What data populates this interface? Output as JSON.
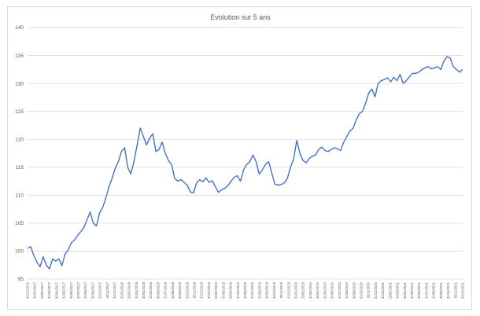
{
  "chart_data": {
    "type": "line",
    "title": "Evolution sur 5 ans",
    "xlabel": "",
    "ylabel": "",
    "ylim": [
      95,
      140
    ],
    "yticks": [
      95,
      100,
      105,
      110,
      115,
      120,
      125,
      130,
      135,
      140
    ],
    "grid": true,
    "legend": "none",
    "colors": {
      "series": "#4472c4",
      "grid": "#d9d9d9",
      "text": "#595959"
    },
    "x_tick_labels": [
      "31/12/2016",
      "31/01/2017",
      "28/02/2017",
      "31/03/2017",
      "30/04/2017",
      "31/05/2017",
      "30/06/2017",
      "31/07/2017",
      "31/08/2017",
      "30/09/2017",
      "31/10/2017",
      "30/11/2017",
      "31/12/2017",
      "31/01/2018",
      "28/02/2018",
      "31/03/2018",
      "30/04/2018",
      "31/05/2018",
      "30/06/2018",
      "31/07/2018",
      "31/08/2018",
      "30/09/2018",
      "31/10/2018",
      "30/11/2018",
      "31/12/2018",
      "31/01/2019",
      "28/02/2019",
      "31/03/2019",
      "30/04/2019",
      "31/05/2019",
      "30/06/2019",
      "31/07/2019",
      "31/08/2019",
      "30/09/2019",
      "31/10/2019",
      "30/11/2019",
      "31/12/2019",
      "31/01/2020",
      "29/02/2020",
      "31/03/2020",
      "30/04/2020",
      "31/05/2020",
      "30/06/2020",
      "31/07/2020",
      "31/08/2020",
      "30/09/2020",
      "31/10/2020",
      "30/11/2020",
      "31/12/2020",
      "31/01/2021",
      "28/02/2021",
      "31/03/2021",
      "30/04/2021",
      "31/05/2021",
      "30/06/2021",
      "31/07/2021",
      "31/08/2021",
      "30/09/2021",
      "31/10/2021",
      "30/11/2021",
      "31/12/2021"
    ],
    "series": [
      {
        "values": [
          100.5,
          100.8,
          99.2,
          98.0,
          97.2,
          99.0,
          97.5,
          96.8,
          98.6,
          98.2,
          98.6,
          97.4,
          99.5,
          100.2,
          101.5,
          102.0,
          102.8,
          103.5,
          104.2,
          105.6,
          107.0,
          105.0,
          104.5,
          106.8,
          107.8,
          109.5,
          111.5,
          113.0,
          114.8,
          116.0,
          117.8,
          118.5,
          115.0,
          113.8,
          116.0,
          119.0,
          122.0,
          120.5,
          119.0,
          120.2,
          121.0,
          117.8,
          118.2,
          119.5,
          117.5,
          116.2,
          115.5,
          113.0,
          112.5,
          112.8,
          112.3,
          111.8,
          110.6,
          110.4,
          112.2,
          112.8,
          112.4,
          113.1,
          112.3,
          112.6,
          111.5,
          110.5,
          111.0,
          111.2,
          111.7,
          112.5,
          113.2,
          113.5,
          112.5,
          114.5,
          115.5,
          116.0,
          117.2,
          116.0,
          113.8,
          114.5,
          115.5,
          116.0,
          114.0,
          112.0,
          111.8,
          111.9,
          112.2,
          113.0,
          115.0,
          116.5,
          119.8,
          117.5,
          116.2,
          115.8,
          116.6,
          117.0,
          117.2,
          118.2,
          118.6,
          118.0,
          117.8,
          118.2,
          118.5,
          118.3,
          118.0,
          119.5,
          120.5,
          121.5,
          122.0,
          123.5,
          124.6,
          125.0,
          126.5,
          128.3,
          129.0,
          127.6,
          130.0,
          130.5,
          130.7,
          131.0,
          130.3,
          131.1,
          130.5,
          131.6,
          130.0,
          130.5,
          131.2,
          131.8,
          131.8,
          132.0,
          132.5,
          132.8,
          133.0,
          132.6,
          132.8,
          133.0,
          132.5,
          134.0,
          134.8,
          134.5,
          133.0,
          132.5,
          132.0,
          132.5
        ]
      }
    ]
  }
}
